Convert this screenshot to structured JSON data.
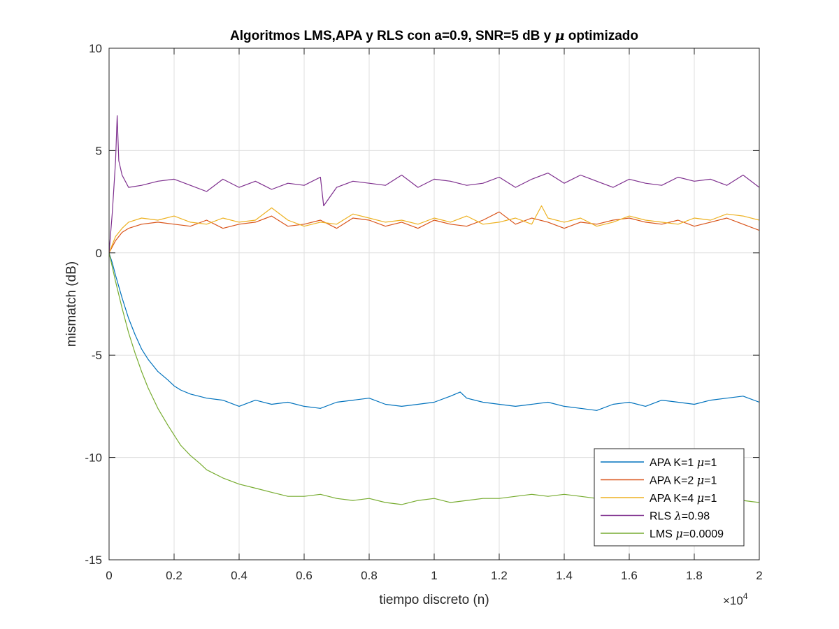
{
  "chart_data": {
    "type": "line",
    "title_parts": [
      "Algoritmos LMS,APA y RLS con a=0.9, SNR=5 dB y ",
      "μ",
      " optimizado"
    ],
    "xlabel": "tiempo discreto (n)",
    "ylabel": "mismatch (dB)",
    "x_multiplier": "×10",
    "x_multiplier_exp": "4",
    "xlim": [
      0,
      2
    ],
    "ylim": [
      -15,
      10
    ],
    "xticks": [
      0,
      0.2,
      0.4,
      0.6,
      0.8,
      1,
      1.2,
      1.4,
      1.6,
      1.8,
      2
    ],
    "xtick_labels": [
      "0",
      "0.2",
      "0.4",
      "0.6",
      "0.8",
      "1",
      "1.2",
      "1.4",
      "1.6",
      "1.8",
      "2"
    ],
    "yticks": [
      -15,
      -10,
      -5,
      0,
      5,
      10
    ],
    "ytick_labels": [
      "-15",
      "-10",
      "-5",
      "0",
      "5",
      "10"
    ],
    "grid": true,
    "legend_position": "bottom-right",
    "series": [
      {
        "name_parts": [
          "APA K=1 ",
          "μ",
          "=1"
        ],
        "color": "#0072BD",
        "x": [
          0,
          0.01,
          0.02,
          0.04,
          0.06,
          0.08,
          0.1,
          0.12,
          0.15,
          0.18,
          0.2,
          0.22,
          0.25,
          0.3,
          0.35,
          0.4,
          0.45,
          0.5,
          0.55,
          0.6,
          0.65,
          0.7,
          0.75,
          0.8,
          0.85,
          0.9,
          0.95,
          1.0,
          1.05,
          1.08,
          1.1,
          1.15,
          1.2,
          1.25,
          1.3,
          1.35,
          1.4,
          1.45,
          1.5,
          1.55,
          1.6,
          1.65,
          1.7,
          1.75,
          1.8,
          1.85,
          1.9,
          1.95,
          2.0
        ],
        "values": [
          0,
          -0.5,
          -1.1,
          -2.2,
          -3.2,
          -4.0,
          -4.7,
          -5.2,
          -5.8,
          -6.2,
          -6.5,
          -6.7,
          -6.9,
          -7.1,
          -7.2,
          -7.5,
          -7.2,
          -7.4,
          -7.3,
          -7.5,
          -7.6,
          -7.3,
          -7.2,
          -7.1,
          -7.4,
          -7.5,
          -7.4,
          -7.3,
          -7.0,
          -6.8,
          -7.1,
          -7.3,
          -7.4,
          -7.5,
          -7.4,
          -7.3,
          -7.5,
          -7.6,
          -7.7,
          -7.4,
          -7.3,
          -7.5,
          -7.2,
          -7.3,
          -7.4,
          -7.2,
          -7.1,
          -7.0,
          -7.3
        ]
      },
      {
        "name_parts": [
          "APA K=2 ",
          "μ",
          "=1"
        ],
        "color": "#D95319",
        "x": [
          0,
          0.02,
          0.04,
          0.06,
          0.1,
          0.15,
          0.2,
          0.25,
          0.3,
          0.35,
          0.4,
          0.45,
          0.5,
          0.55,
          0.6,
          0.65,
          0.7,
          0.75,
          0.8,
          0.85,
          0.9,
          0.95,
          1.0,
          1.05,
          1.1,
          1.15,
          1.2,
          1.25,
          1.3,
          1.35,
          1.4,
          1.45,
          1.5,
          1.55,
          1.6,
          1.65,
          1.7,
          1.75,
          1.8,
          1.85,
          1.9,
          1.95,
          2.0
        ],
        "values": [
          0,
          0.6,
          1.0,
          1.2,
          1.4,
          1.5,
          1.4,
          1.3,
          1.6,
          1.2,
          1.4,
          1.5,
          1.8,
          1.3,
          1.4,
          1.6,
          1.2,
          1.7,
          1.6,
          1.3,
          1.5,
          1.2,
          1.6,
          1.4,
          1.3,
          1.6,
          2.0,
          1.4,
          1.7,
          1.5,
          1.2,
          1.5,
          1.4,
          1.6,
          1.7,
          1.5,
          1.4,
          1.6,
          1.3,
          1.5,
          1.7,
          1.4,
          1.1
        ]
      },
      {
        "name_parts": [
          "APA K=4 ",
          "μ",
          "=1"
        ],
        "color": "#EDB120",
        "x": [
          0,
          0.02,
          0.04,
          0.06,
          0.1,
          0.15,
          0.2,
          0.25,
          0.3,
          0.35,
          0.4,
          0.45,
          0.5,
          0.55,
          0.6,
          0.65,
          0.7,
          0.75,
          0.8,
          0.85,
          0.9,
          0.95,
          1.0,
          1.05,
          1.1,
          1.15,
          1.2,
          1.25,
          1.3,
          1.33,
          1.35,
          1.4,
          1.45,
          1.5,
          1.55,
          1.6,
          1.65,
          1.7,
          1.75,
          1.8,
          1.85,
          1.9,
          1.95,
          2.0
        ],
        "values": [
          0,
          0.8,
          1.2,
          1.5,
          1.7,
          1.6,
          1.8,
          1.5,
          1.4,
          1.7,
          1.5,
          1.6,
          2.2,
          1.6,
          1.3,
          1.5,
          1.4,
          1.9,
          1.7,
          1.5,
          1.6,
          1.4,
          1.7,
          1.5,
          1.8,
          1.4,
          1.5,
          1.7,
          1.4,
          2.3,
          1.7,
          1.5,
          1.7,
          1.3,
          1.5,
          1.8,
          1.6,
          1.5,
          1.4,
          1.7,
          1.6,
          1.9,
          1.8,
          1.6
        ]
      },
      {
        "name_parts": [
          "RLS ",
          "λ",
          "=0.98"
        ],
        "color": "#7E2F8E",
        "x": [
          0,
          0.01,
          0.02,
          0.025,
          0.03,
          0.04,
          0.06,
          0.1,
          0.15,
          0.2,
          0.25,
          0.3,
          0.35,
          0.4,
          0.45,
          0.5,
          0.55,
          0.6,
          0.65,
          0.66,
          0.7,
          0.75,
          0.8,
          0.85,
          0.9,
          0.95,
          1.0,
          1.05,
          1.1,
          1.15,
          1.2,
          1.25,
          1.3,
          1.35,
          1.4,
          1.45,
          1.5,
          1.55,
          1.6,
          1.65,
          1.7,
          1.75,
          1.8,
          1.85,
          1.9,
          1.95,
          2.0
        ],
        "values": [
          0,
          2.0,
          4.5,
          6.7,
          4.5,
          3.8,
          3.2,
          3.3,
          3.5,
          3.6,
          3.3,
          3.0,
          3.6,
          3.2,
          3.5,
          3.1,
          3.4,
          3.3,
          3.7,
          2.3,
          3.2,
          3.5,
          3.4,
          3.3,
          3.8,
          3.2,
          3.6,
          3.5,
          3.3,
          3.4,
          3.7,
          3.2,
          3.6,
          3.9,
          3.4,
          3.8,
          3.5,
          3.2,
          3.6,
          3.4,
          3.3,
          3.7,
          3.5,
          3.6,
          3.3,
          3.8,
          3.2
        ]
      },
      {
        "name_parts": [
          "LMS ",
          "μ",
          "=0.0009"
        ],
        "color": "#77AC30",
        "x": [
          0,
          0.01,
          0.02,
          0.04,
          0.06,
          0.08,
          0.1,
          0.12,
          0.15,
          0.18,
          0.2,
          0.22,
          0.25,
          0.28,
          0.3,
          0.35,
          0.4,
          0.45,
          0.5,
          0.55,
          0.6,
          0.65,
          0.7,
          0.75,
          0.8,
          0.85,
          0.9,
          0.95,
          1.0,
          1.05,
          1.1,
          1.15,
          1.2,
          1.25,
          1.3,
          1.35,
          1.4,
          1.45,
          1.5,
          1.55,
          1.6,
          1.65,
          1.7,
          1.75,
          1.8,
          1.85,
          1.9,
          1.95,
          2.0
        ],
        "values": [
          0,
          -0.7,
          -1.4,
          -2.7,
          -3.9,
          -4.9,
          -5.8,
          -6.6,
          -7.6,
          -8.4,
          -8.9,
          -9.4,
          -9.9,
          -10.3,
          -10.6,
          -11.0,
          -11.3,
          -11.5,
          -11.7,
          -11.9,
          -11.9,
          -11.8,
          -12.0,
          -12.1,
          -12.0,
          -12.2,
          -12.3,
          -12.1,
          -12.0,
          -12.2,
          -12.1,
          -12.0,
          -12.0,
          -11.9,
          -11.8,
          -11.9,
          -11.8,
          -11.9,
          -12.0,
          -12.1,
          -12.1,
          -12.0,
          -12.1,
          -12.0,
          -12.1,
          -12.2,
          -12.0,
          -12.1,
          -12.2
        ]
      }
    ]
  }
}
